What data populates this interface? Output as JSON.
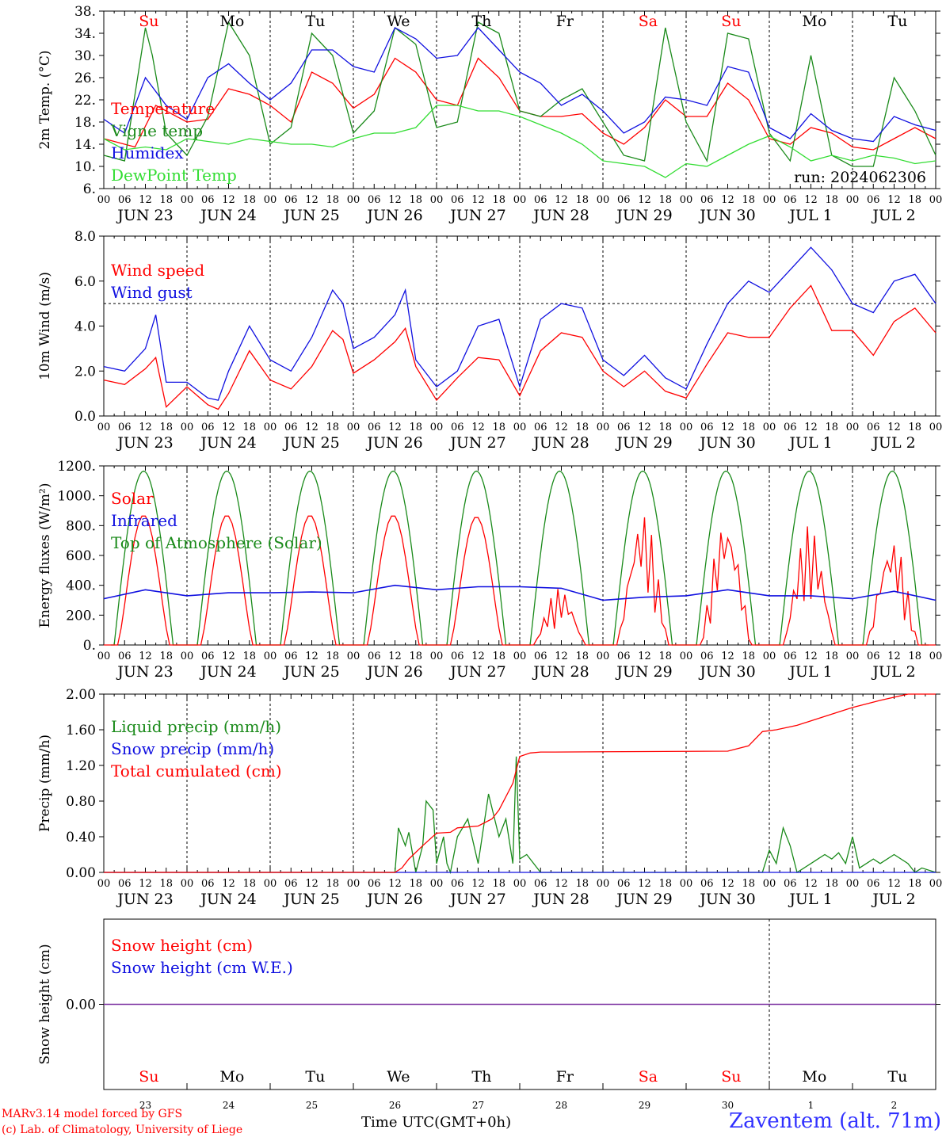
{
  "colors": {
    "red": "#ff0000",
    "green": "#1a8a1a",
    "blue": "#1010e0",
    "lightgreen": "#33dd33",
    "purple": "#7a2fa0",
    "black": "#000000"
  },
  "days": [
    "Su",
    "Mo",
    "Tu",
    "We",
    "Th",
    "Fr",
    "Sa",
    "Su",
    "Mo",
    "Tu"
  ],
  "weekend_days": [
    0,
    6,
    7
  ],
  "date_labels": [
    "JUN 23",
    "JUN 24",
    "JUN 25",
    "JUN 26",
    "JUN 27",
    "JUN 28",
    "JUN 29",
    "JUN 30",
    "JUL  1",
    "JUL  2"
  ],
  "day_numbers": [
    "23",
    "24",
    "25",
    "26",
    "27",
    "28",
    "29",
    "30",
    "1",
    "2"
  ],
  "hour_ticks": [
    "00",
    "06",
    "12",
    "18"
  ],
  "footer": {
    "model": "MARv3.14 model forced by GFS",
    "lab": "(c) Lab. of Climatology, University of Liege",
    "time_axis": "Time UTC(GMT+0h)",
    "station": "Zaventem (alt. 71m)"
  },
  "chart_data": [
    {
      "type": "line",
      "ylabel": "2m Temp. (°C)",
      "ylim": [
        6,
        38
      ],
      "yticks": [
        "38.",
        "34.",
        "30.",
        "26.",
        "22.",
        "18.",
        "14.",
        "10.",
        "6."
      ],
      "run_label": "run: 2024062306",
      "x_unit": "hours since JUN 23 00 UTC",
      "series": [
        {
          "name": "Temperature",
          "color": "red",
          "x": [
            0,
            9,
            15,
            24,
            30,
            36,
            42,
            48,
            54,
            60,
            66,
            72,
            78,
            84,
            90,
            96,
            102,
            108,
            114,
            120,
            126,
            132,
            138,
            144,
            150,
            156,
            162,
            168,
            174,
            180,
            186,
            192,
            198,
            204,
            210,
            216,
            222,
            228,
            234,
            240
          ],
          "values": [
            15,
            13.5,
            21,
            18,
            18.5,
            24,
            23,
            21,
            18,
            27,
            25,
            20.5,
            23,
            29.5,
            27,
            22,
            21,
            29.5,
            26,
            20,
            19,
            19,
            19.5,
            16,
            14,
            17,
            22,
            19,
            19,
            25,
            22,
            15,
            14,
            17,
            16,
            13.5,
            13,
            15,
            17,
            15
          ]
        },
        {
          "name": "Vigne temp",
          "color": "green",
          "x": [
            0,
            6,
            12,
            14,
            18,
            24,
            30,
            36,
            42,
            48,
            54,
            60,
            66,
            72,
            78,
            84,
            90,
            96,
            102,
            108,
            114,
            120,
            126,
            132,
            138,
            144,
            150,
            156,
            162,
            168,
            174,
            180,
            186,
            192,
            198,
            204,
            210,
            216,
            222,
            228,
            234,
            240
          ],
          "values": [
            12,
            11,
            35,
            30,
            16,
            12,
            19,
            36,
            30,
            14,
            17,
            34,
            30,
            16,
            20,
            35,
            32,
            17,
            18,
            36,
            34,
            20,
            19,
            22,
            24,
            18,
            12,
            11,
            35,
            18,
            11,
            34,
            33,
            16,
            11,
            30,
            12,
            10,
            10,
            26,
            20,
            12
          ]
        },
        {
          "name": "Humidex",
          "color": "blue",
          "x": [
            0,
            6,
            12,
            18,
            24,
            30,
            36,
            42,
            48,
            54,
            60,
            66,
            72,
            78,
            84,
            90,
            96,
            102,
            108,
            114,
            120,
            126,
            132,
            138,
            144,
            150,
            156,
            162,
            168,
            174,
            180,
            186,
            192,
            198,
            204,
            210,
            216,
            222,
            228,
            234,
            240
          ],
          "values": [
            18.5,
            16,
            26,
            21,
            18.5,
            26,
            28.5,
            25,
            22,
            25,
            31,
            31,
            28,
            27,
            35,
            33,
            29.5,
            30,
            35,
            31,
            27,
            25,
            21,
            23,
            20,
            16,
            18,
            22.5,
            22,
            21,
            28,
            27,
            17,
            15,
            19.5,
            16.5,
            15,
            14.5,
            19,
            17.5,
            16.5
          ]
        },
        {
          "name": "DewPoint Temp",
          "color": "lightgreen",
          "x": [
            0,
            6,
            12,
            18,
            24,
            30,
            36,
            42,
            48,
            54,
            60,
            66,
            72,
            78,
            84,
            90,
            96,
            102,
            108,
            114,
            120,
            126,
            132,
            138,
            144,
            150,
            156,
            162,
            168,
            174,
            180,
            186,
            192,
            198,
            204,
            210,
            216,
            222,
            228,
            234,
            240
          ],
          "values": [
            15,
            13,
            13.5,
            13,
            15,
            14.5,
            14,
            15,
            14.5,
            14,
            14,
            13.5,
            15,
            16,
            16,
            17,
            21,
            21,
            20,
            20,
            19,
            17.5,
            16,
            14,
            11,
            10.5,
            10,
            8,
            10.5,
            10,
            12,
            14,
            15.5,
            13.5,
            11,
            12,
            11,
            12,
            11.5,
            10.5,
            11
          ]
        }
      ]
    },
    {
      "type": "line",
      "ylabel": "10m Wind (m/s)",
      "ylim": [
        0,
        8
      ],
      "yticks": [
        "8.0",
        "6.0",
        "4.0",
        "2.0",
        "0.0"
      ],
      "reference_line": 5,
      "series": [
        {
          "name": "Wind speed",
          "color": "red",
          "x": [
            0,
            6,
            12,
            15,
            18,
            24,
            30,
            33,
            36,
            42,
            48,
            54,
            60,
            66,
            69,
            72,
            78,
            84,
            87,
            90,
            96,
            102,
            108,
            114,
            120,
            126,
            132,
            138,
            144,
            150,
            156,
            162,
            168,
            174,
            180,
            186,
            192,
            198,
            204,
            210,
            216,
            222,
            228,
            234,
            240
          ],
          "values": [
            1.6,
            1.4,
            2.1,
            2.6,
            0.4,
            1.3,
            0.5,
            0.3,
            1.0,
            2.9,
            1.6,
            1.2,
            2.2,
            3.8,
            3.4,
            1.9,
            2.5,
            3.3,
            3.9,
            2.2,
            0.7,
            1.7,
            2.6,
            2.5,
            0.9,
            2.9,
            3.7,
            3.5,
            2.0,
            1.3,
            2.0,
            1.1,
            0.8,
            2.3,
            3.7,
            3.5,
            3.5,
            4.8,
            5.8,
            3.8,
            3.8,
            2.7,
            4.2,
            4.8,
            3.7
          ]
        },
        {
          "name": "Wind gust",
          "color": "blue",
          "x": [
            0,
            6,
            12,
            15,
            18,
            24,
            30,
            33,
            36,
            42,
            48,
            54,
            60,
            66,
            69,
            72,
            78,
            84,
            87,
            90,
            96,
            102,
            108,
            114,
            120,
            126,
            132,
            138,
            144,
            150,
            156,
            162,
            168,
            174,
            180,
            186,
            192,
            198,
            204,
            210,
            216,
            222,
            228,
            234,
            240
          ],
          "values": [
            2.2,
            2.0,
            3.0,
            4.5,
            1.5,
            1.5,
            0.8,
            0.7,
            2.0,
            4.0,
            2.5,
            2.0,
            3.5,
            5.6,
            5.0,
            3.0,
            3.5,
            4.5,
            5.6,
            2.5,
            1.3,
            2.0,
            4.0,
            4.3,
            1.3,
            4.3,
            5.0,
            4.8,
            2.5,
            1.8,
            2.7,
            1.7,
            1.2,
            3.2,
            5.0,
            6.0,
            5.5,
            6.5,
            7.5,
            6.5,
            5.0,
            4.6,
            6.0,
            6.3,
            5.0
          ]
        }
      ]
    },
    {
      "type": "line",
      "ylabel": "Energy fluxes (W/m²)",
      "ylim": [
        0,
        1200
      ],
      "yticks": [
        "1200.",
        "1000.",
        "800.",
        "600.",
        "400.",
        "200.",
        "0."
      ],
      "series": [
        {
          "name": "Solar",
          "color": "red",
          "daily_peaks": [
            870,
            870,
            870,
            870,
            860,
            380,
            890,
            860,
            800,
            720
          ],
          "x_peak_offset_h": 13
        },
        {
          "name": "Infrared",
          "color": "blue",
          "x": [
            0,
            12,
            24,
            36,
            48,
            60,
            72,
            84,
            96,
            108,
            120,
            132,
            144,
            156,
            168,
            180,
            192,
            204,
            216,
            228,
            240
          ],
          "values": [
            310,
            370,
            330,
            350,
            350,
            355,
            350,
            400,
            370,
            390,
            390,
            380,
            300,
            320,
            330,
            370,
            330,
            330,
            310,
            360,
            300
          ]
        },
        {
          "name": "Top of Atmosphere (Solar)",
          "color": "green",
          "daily_peaks": [
            1165,
            1165,
            1165,
            1165,
            1165,
            1165,
            1165,
            1165,
            1165,
            1165
          ]
        }
      ]
    },
    {
      "type": "line",
      "ylabel": "Precip (mm/h)",
      "ylim": [
        0,
        2
      ],
      "yticks": [
        "2.00",
        "1.60",
        "1.20",
        "0.80",
        "0.40",
        "0.00"
      ],
      "series": [
        {
          "name": "Liquid precip (mm/h)",
          "color": "green",
          "x": [
            0,
            84,
            85,
            87,
            88,
            90,
            92,
            93,
            95,
            96,
            98,
            99,
            100,
            102,
            105,
            108,
            111,
            114,
            116,
            118,
            119,
            120,
            122,
            126,
            130,
            190,
            192,
            194,
            196,
            198,
            200,
            202,
            204,
            206,
            208,
            210,
            212,
            214,
            216,
            218,
            220,
            222,
            224,
            228,
            232,
            234,
            236,
            240
          ],
          "values": [
            0,
            0,
            0.5,
            0.3,
            0.45,
            0,
            0.3,
            0.8,
            0.7,
            0.1,
            0.4,
            0.1,
            0,
            0.4,
            0.6,
            0.1,
            0.88,
            0.4,
            0.6,
            0.1,
            1.3,
            0.15,
            0.2,
            0,
            0,
            0,
            0.25,
            0.1,
            0.5,
            0.3,
            0,
            0.05,
            0.1,
            0.15,
            0.2,
            0.15,
            0.22,
            0.1,
            0.4,
            0.05,
            0.1,
            0.15,
            0.1,
            0.2,
            0.1,
            0,
            0.05,
            0
          ]
        },
        {
          "name": "Snow precip (mm/h)",
          "color": "blue",
          "x": [
            0,
            240
          ],
          "values": [
            0,
            0
          ]
        },
        {
          "name": "Total cumulated (cm)",
          "color": "red",
          "x": [
            0,
            84,
            86,
            88,
            92,
            96,
            100,
            102,
            108,
            112,
            114,
            118,
            120,
            123,
            126,
            130,
            180,
            186,
            190,
            194,
            200,
            208,
            216,
            224,
            232,
            240
          ],
          "values": [
            0,
            0,
            0.05,
            0.15,
            0.3,
            0.44,
            0.45,
            0.5,
            0.52,
            0.6,
            0.7,
            1.0,
            1.3,
            1.34,
            1.35,
            1.35,
            1.36,
            1.42,
            1.58,
            1.6,
            1.65,
            1.75,
            1.85,
            1.93,
            2.0,
            2.0
          ]
        }
      ]
    },
    {
      "type": "line",
      "ylabel": "Snow height (cm)",
      "ylim": [
        -1,
        1
      ],
      "yticks": [
        "0.00"
      ],
      "series": [
        {
          "name": "Snow height (cm)",
          "color": "red",
          "x": [
            0,
            240
          ],
          "values": [
            0,
            0
          ]
        },
        {
          "name": "Snow height (cm W.E.)",
          "color": "blue",
          "x": [
            0,
            240
          ],
          "values": [
            0,
            0
          ]
        }
      ]
    }
  ]
}
